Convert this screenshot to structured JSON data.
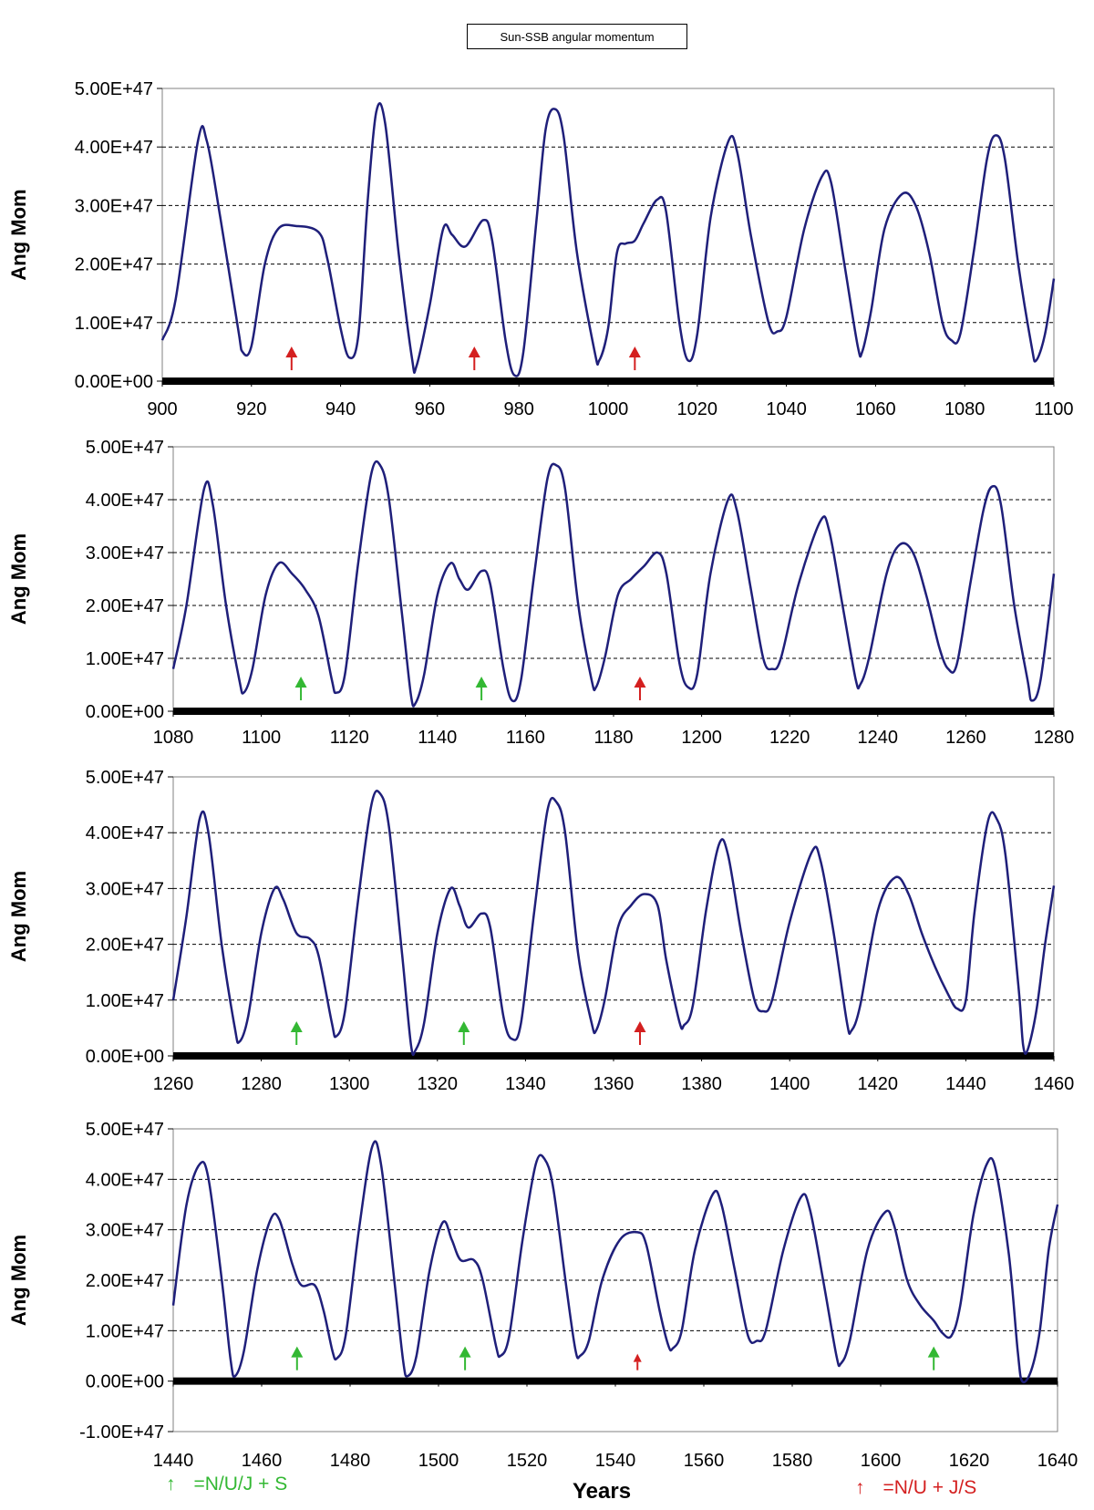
{
  "title": "Sun-SSB angular momentum",
  "xlabel": "Years",
  "legend": {
    "green_label": "=N/U/J + S",
    "red_label": "=N/U + J/S",
    "green_color": "#33b833",
    "red_color": "#d42020"
  },
  "colors": {
    "line": "#1f1f7a",
    "grid": "#000000",
    "zero_axis": "#000000"
  },
  "chart_data": [
    {
      "type": "line",
      "ylabel": "Ang Mom",
      "xlim": [
        900,
        1100
      ],
      "ylim": [
        0,
        5e+47
      ],
      "x_ticks": [
        "900",
        "920",
        "940",
        "960",
        "980",
        "1000",
        "1020",
        "1040",
        "1060",
        "1080",
        "1100"
      ],
      "y_ticks": [
        "0.00E+00",
        "1.00E+47",
        "2.00E+47",
        "3.00E+47",
        "4.00E+47",
        "5.00E+47"
      ],
      "points": [
        [
          900,
          0.7
        ],
        [
          903,
          1.4
        ],
        [
          908,
          4.1
        ],
        [
          910,
          4.1
        ],
        [
          913,
          2.8
        ],
        [
          917,
          0.9
        ],
        [
          918,
          0.5
        ],
        [
          920,
          0.6
        ],
        [
          923,
          2.0
        ],
        [
          926,
          2.6
        ],
        [
          930,
          2.65
        ],
        [
          935,
          2.55
        ],
        [
          937,
          2.1
        ],
        [
          940,
          0.9
        ],
        [
          942,
          0.4
        ],
        [
          944,
          0.8
        ],
        [
          946,
          3.0
        ],
        [
          948,
          4.6
        ],
        [
          950,
          4.4
        ],
        [
          953,
          2.2
        ],
        [
          956,
          0.4
        ],
        [
          957,
          0.25
        ],
        [
          960,
          1.3
        ],
        [
          963,
          2.6
        ],
        [
          965,
          2.5
        ],
        [
          968,
          2.3
        ],
        [
          972,
          2.75
        ],
        [
          974,
          2.4
        ],
        [
          977,
          0.7
        ],
        [
          979,
          0.1
        ],
        [
          981,
          0.5
        ],
        [
          984,
          2.8
        ],
        [
          986,
          4.3
        ],
        [
          988,
          4.65
        ],
        [
          990,
          4.2
        ],
        [
          993,
          2.2
        ],
        [
          997,
          0.5
        ],
        [
          998,
          0.35
        ],
        [
          1000,
          0.9
        ],
        [
          1002,
          2.2
        ],
        [
          1004,
          2.35
        ],
        [
          1006,
          2.4
        ],
        [
          1008,
          2.7
        ],
        [
          1011,
          3.1
        ],
        [
          1013,
          2.9
        ],
        [
          1016,
          1.0
        ],
        [
          1018,
          0.35
        ],
        [
          1020,
          0.8
        ],
        [
          1023,
          2.8
        ],
        [
          1027,
          4.1
        ],
        [
          1029,
          3.9
        ],
        [
          1032,
          2.5
        ],
        [
          1036,
          1.0
        ],
        [
          1038,
          0.85
        ],
        [
          1040,
          1.1
        ],
        [
          1044,
          2.6
        ],
        [
          1048,
          3.5
        ],
        [
          1050,
          3.4
        ],
        [
          1053,
          2.0
        ],
        [
          1056,
          0.6
        ],
        [
          1057,
          0.5
        ],
        [
          1059,
          1.2
        ],
        [
          1062,
          2.6
        ],
        [
          1066,
          3.2
        ],
        [
          1069,
          3.0
        ],
        [
          1072,
          2.2
        ],
        [
          1075,
          1.0
        ],
        [
          1077,
          0.7
        ],
        [
          1079,
          0.8
        ],
        [
          1082,
          2.2
        ],
        [
          1085,
          3.8
        ],
        [
          1087,
          4.2
        ],
        [
          1089,
          3.8
        ],
        [
          1092,
          2.0
        ],
        [
          1095,
          0.6
        ],
        [
          1096,
          0.35
        ],
        [
          1098,
          0.8
        ],
        [
          1100,
          1.75
        ]
      ],
      "arrows": [
        {
          "x": 929,
          "kind": "red"
        },
        {
          "x": 970,
          "kind": "red"
        },
        {
          "x": 1006,
          "kind": "red"
        }
      ]
    },
    {
      "type": "line",
      "ylabel": "Ang Mom",
      "xlim": [
        1080,
        1280
      ],
      "ylim": [
        0,
        5e+47
      ],
      "x_ticks": [
        "1080",
        "1100",
        "1120",
        "1140",
        "1160",
        "1180",
        "1200",
        "1220",
        "1240",
        "1260",
        "1280"
      ],
      "y_ticks": [
        "0.00E+00",
        "1.00E+47",
        "2.00E+47",
        "3.00E+47",
        "4.00E+47",
        "5.00E+47"
      ],
      "points": [
        [
          1080,
          0.8
        ],
        [
          1083,
          2.0
        ],
        [
          1087,
          4.2
        ],
        [
          1089,
          3.9
        ],
        [
          1092,
          2.0
        ],
        [
          1095,
          0.6
        ],
        [
          1096,
          0.35
        ],
        [
          1098,
          0.8
        ],
        [
          1101,
          2.2
        ],
        [
          1104,
          2.8
        ],
        [
          1107,
          2.6
        ],
        [
          1110,
          2.3
        ],
        [
          1113,
          1.8
        ],
        [
          1116,
          0.6
        ],
        [
          1117,
          0.35
        ],
        [
          1119,
          0.7
        ],
        [
          1122,
          2.8
        ],
        [
          1125,
          4.5
        ],
        [
          1127,
          4.65
        ],
        [
          1129,
          4.0
        ],
        [
          1132,
          1.8
        ],
        [
          1134,
          0.3
        ],
        [
          1135,
          0.15
        ],
        [
          1137,
          0.7
        ],
        [
          1140,
          2.2
        ],
        [
          1143,
          2.8
        ],
        [
          1145,
          2.5
        ],
        [
          1147,
          2.3
        ],
        [
          1150,
          2.65
        ],
        [
          1152,
          2.4
        ],
        [
          1155,
          0.8
        ],
        [
          1157,
          0.2
        ],
        [
          1159,
          0.6
        ],
        [
          1162,
          2.6
        ],
        [
          1165,
          4.4
        ],
        [
          1167,
          4.65
        ],
        [
          1169,
          4.2
        ],
        [
          1172,
          2.0
        ],
        [
          1175,
          0.6
        ],
        [
          1176,
          0.45
        ],
        [
          1178,
          1.0
        ],
        [
          1181,
          2.2
        ],
        [
          1184,
          2.5
        ],
        [
          1187,
          2.75
        ],
        [
          1190,
          3.0
        ],
        [
          1192,
          2.6
        ],
        [
          1195,
          0.9
        ],
        [
          1197,
          0.45
        ],
        [
          1199,
          0.7
        ],
        [
          1202,
          2.6
        ],
        [
          1206,
          4.0
        ],
        [
          1208,
          3.8
        ],
        [
          1211,
          2.4
        ],
        [
          1214,
          1.0
        ],
        [
          1216,
          0.8
        ],
        [
          1218,
          1.0
        ],
        [
          1222,
          2.4
        ],
        [
          1227,
          3.6
        ],
        [
          1229,
          3.4
        ],
        [
          1232,
          2.0
        ],
        [
          1235,
          0.6
        ],
        [
          1236,
          0.5
        ],
        [
          1238,
          1.0
        ],
        [
          1242,
          2.6
        ],
        [
          1245,
          3.15
        ],
        [
          1248,
          3.0
        ],
        [
          1251,
          2.2
        ],
        [
          1254,
          1.2
        ],
        [
          1256,
          0.8
        ],
        [
          1258,
          0.9
        ],
        [
          1261,
          2.4
        ],
        [
          1264,
          3.8
        ],
        [
          1266,
          4.25
        ],
        [
          1268,
          3.9
        ],
        [
          1271,
          2.0
        ],
        [
          1274,
          0.6
        ],
        [
          1275,
          0.2
        ],
        [
          1277,
          0.6
        ],
        [
          1280,
          2.6
        ]
      ],
      "arrows": [
        {
          "x": 1109,
          "kind": "green"
        },
        {
          "x": 1150,
          "kind": "green"
        },
        {
          "x": 1186,
          "kind": "red"
        }
      ]
    },
    {
      "type": "line",
      "ylabel": "Ang Mom",
      "xlim": [
        1260,
        1460
      ],
      "ylim": [
        0,
        5e+47
      ],
      "x_ticks": [
        "1260",
        "1280",
        "1300",
        "1320",
        "1340",
        "1360",
        "1380",
        "1400",
        "1420",
        "1440",
        "1460"
      ],
      "y_ticks": [
        "0.00E+00",
        "1.00E+47",
        "2.00E+47",
        "3.00E+47",
        "4.00E+47",
        "5.00E+47"
      ],
      "points": [
        [
          1260,
          1.0
        ],
        [
          1263,
          2.5
        ],
        [
          1266,
          4.25
        ],
        [
          1268,
          4.0
        ],
        [
          1271,
          2.0
        ],
        [
          1274,
          0.5
        ],
        [
          1275,
          0.25
        ],
        [
          1277,
          0.7
        ],
        [
          1280,
          2.2
        ],
        [
          1283,
          3.0
        ],
        [
          1285,
          2.8
        ],
        [
          1288,
          2.2
        ],
        [
          1291,
          2.1
        ],
        [
          1293,
          1.8
        ],
        [
          1296,
          0.6
        ],
        [
          1297,
          0.35
        ],
        [
          1299,
          0.8
        ],
        [
          1302,
          2.8
        ],
        [
          1305,
          4.5
        ],
        [
          1307,
          4.7
        ],
        [
          1309,
          4.1
        ],
        [
          1312,
          1.8
        ],
        [
          1314,
          0.2
        ],
        [
          1315,
          0.1
        ],
        [
          1317,
          0.6
        ],
        [
          1320,
          2.2
        ],
        [
          1323,
          3.0
        ],
        [
          1325,
          2.7
        ],
        [
          1327,
          2.3
        ],
        [
          1330,
          2.55
        ],
        [
          1332,
          2.3
        ],
        [
          1335,
          0.7
        ],
        [
          1337,
          0.3
        ],
        [
          1339,
          0.6
        ],
        [
          1342,
          2.6
        ],
        [
          1345,
          4.4
        ],
        [
          1347,
          4.55
        ],
        [
          1349,
          4.0
        ],
        [
          1352,
          1.8
        ],
        [
          1355,
          0.6
        ],
        [
          1356,
          0.45
        ],
        [
          1358,
          1.0
        ],
        [
          1361,
          2.3
        ],
        [
          1364,
          2.7
        ],
        [
          1367,
          2.9
        ],
        [
          1370,
          2.7
        ],
        [
          1372,
          1.7
        ],
        [
          1375,
          0.6
        ],
        [
          1376,
          0.55
        ],
        [
          1378,
          0.9
        ],
        [
          1381,
          2.6
        ],
        [
          1384,
          3.8
        ],
        [
          1386,
          3.6
        ],
        [
          1389,
          2.2
        ],
        [
          1392,
          1.0
        ],
        [
          1394,
          0.8
        ],
        [
          1396,
          1.0
        ],
        [
          1400,
          2.4
        ],
        [
          1405,
          3.65
        ],
        [
          1407,
          3.5
        ],
        [
          1410,
          2.2
        ],
        [
          1413,
          0.6
        ],
        [
          1414,
          0.45
        ],
        [
          1416,
          0.9
        ],
        [
          1420,
          2.6
        ],
        [
          1424,
          3.2
        ],
        [
          1427,
          2.9
        ],
        [
          1430,
          2.2
        ],
        [
          1433,
          1.6
        ],
        [
          1436,
          1.1
        ],
        [
          1438,
          0.85
        ],
        [
          1440,
          1.0
        ],
        [
          1442,
          2.6
        ],
        [
          1445,
          4.2
        ],
        [
          1447,
          4.25
        ],
        [
          1449,
          3.6
        ],
        [
          1452,
          1.2
        ],
        [
          1453,
          0.2
        ],
        [
          1454,
          0.1
        ],
        [
          1456,
          0.8
        ],
        [
          1458,
          2.0
        ],
        [
          1460,
          3.05
        ]
      ],
      "arrows": [
        {
          "x": 1288,
          "kind": "green"
        },
        {
          "x": 1326,
          "kind": "green"
        },
        {
          "x": 1366,
          "kind": "red"
        }
      ]
    },
    {
      "type": "line",
      "ylabel": "Ang Mom",
      "xlim": [
        1440,
        1640
      ],
      "ylim": [
        -1e+47,
        5e+47
      ],
      "x_ticks": [
        "1440",
        "1460",
        "1480",
        "1500",
        "1520",
        "1540",
        "1560",
        "1580",
        "1600",
        "1620",
        "1640"
      ],
      "y_ticks": [
        "-1.00E+47",
        "0.00E+00",
        "1.00E+47",
        "2.00E+47",
        "3.00E+47",
        "4.00E+47",
        "5.00E+47"
      ],
      "points": [
        [
          1440,
          1.5
        ],
        [
          1443,
          3.5
        ],
        [
          1446,
          4.3
        ],
        [
          1448,
          4.0
        ],
        [
          1451,
          2.0
        ],
        [
          1453,
          0.4
        ],
        [
          1454,
          0.1
        ],
        [
          1456,
          0.6
        ],
        [
          1459,
          2.2
        ],
        [
          1462,
          3.2
        ],
        [
          1464,
          3.2
        ],
        [
          1467,
          2.3
        ],
        [
          1469,
          1.9
        ],
        [
          1472,
          1.9
        ],
        [
          1474,
          1.4
        ],
        [
          1476,
          0.6
        ],
        [
          1477,
          0.45
        ],
        [
          1479,
          0.9
        ],
        [
          1482,
          3.0
        ],
        [
          1485,
          4.65
        ],
        [
          1487,
          4.3
        ],
        [
          1490,
          2.0
        ],
        [
          1492,
          0.4
        ],
        [
          1493,
          0.1
        ],
        [
          1495,
          0.5
        ],
        [
          1498,
          2.2
        ],
        [
          1501,
          3.15
        ],
        [
          1503,
          2.8
        ],
        [
          1505,
          2.4
        ],
        [
          1508,
          2.4
        ],
        [
          1510,
          2.0
        ],
        [
          1513,
          0.7
        ],
        [
          1514,
          0.5
        ],
        [
          1516,
          0.9
        ],
        [
          1519,
          2.8
        ],
        [
          1522,
          4.3
        ],
        [
          1524,
          4.4
        ],
        [
          1526,
          3.8
        ],
        [
          1529,
          1.8
        ],
        [
          1531,
          0.6
        ],
        [
          1532,
          0.5
        ],
        [
          1534,
          0.8
        ],
        [
          1537,
          2.0
        ],
        [
          1541,
          2.8
        ],
        [
          1545,
          2.95
        ],
        [
          1547,
          2.7
        ],
        [
          1550,
          1.4
        ],
        [
          1552,
          0.7
        ],
        [
          1553,
          0.65
        ],
        [
          1555,
          1.0
        ],
        [
          1558,
          2.6
        ],
        [
          1562,
          3.7
        ],
        [
          1564,
          3.5
        ],
        [
          1567,
          2.2
        ],
        [
          1570,
          0.9
        ],
        [
          1572,
          0.8
        ],
        [
          1574,
          1.0
        ],
        [
          1578,
          2.6
        ],
        [
          1582,
          3.65
        ],
        [
          1584,
          3.4
        ],
        [
          1587,
          2.0
        ],
        [
          1590,
          0.5
        ],
        [
          1591,
          0.35
        ],
        [
          1593,
          0.8
        ],
        [
          1597,
          2.6
        ],
        [
          1601,
          3.35
        ],
        [
          1603,
          3.1
        ],
        [
          1606,
          2.0
        ],
        [
          1609,
          1.5
        ],
        [
          1612,
          1.2
        ],
        [
          1614,
          0.95
        ],
        [
          1616,
          0.9
        ],
        [
          1618,
          1.5
        ],
        [
          1621,
          3.3
        ],
        [
          1624,
          4.3
        ],
        [
          1626,
          4.2
        ],
        [
          1629,
          2.5
        ],
        [
          1631,
          0.6
        ],
        [
          1632,
          0.0
        ],
        [
          1634,
          0.2
        ],
        [
          1636,
          1.0
        ],
        [
          1638,
          2.6
        ],
        [
          1640,
          3.5
        ]
      ],
      "arrows": [
        {
          "x": 1468,
          "kind": "green"
        },
        {
          "x": 1506,
          "kind": "green"
        },
        {
          "x": 1545,
          "kind": "red-small"
        },
        {
          "x": 1612,
          "kind": "green"
        }
      ]
    }
  ]
}
